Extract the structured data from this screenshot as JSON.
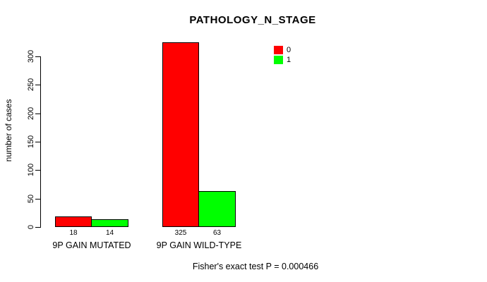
{
  "chart_data": {
    "type": "bar",
    "title": "PATHOLOGY_N_STAGE",
    "ylabel": "number of cases",
    "xlabel": "",
    "categories": [
      "9P GAIN MUTATED",
      "9P GAIN WILD-TYPE"
    ],
    "series": [
      {
        "name": "0",
        "color": "#ff0000",
        "values": [
          18,
          325
        ]
      },
      {
        "name": "1",
        "color": "#00ff00",
        "values": [
          14,
          63
        ]
      }
    ],
    "ylim": [
      0,
      300
    ],
    "yticks": [
      0,
      50,
      100,
      150,
      200,
      250,
      300
    ],
    "grid": false,
    "legend_position": "top-right",
    "bar_border_color": "#000000",
    "axis_color": "#000000",
    "footer": "Fisher's exact test P = 0.000466"
  }
}
